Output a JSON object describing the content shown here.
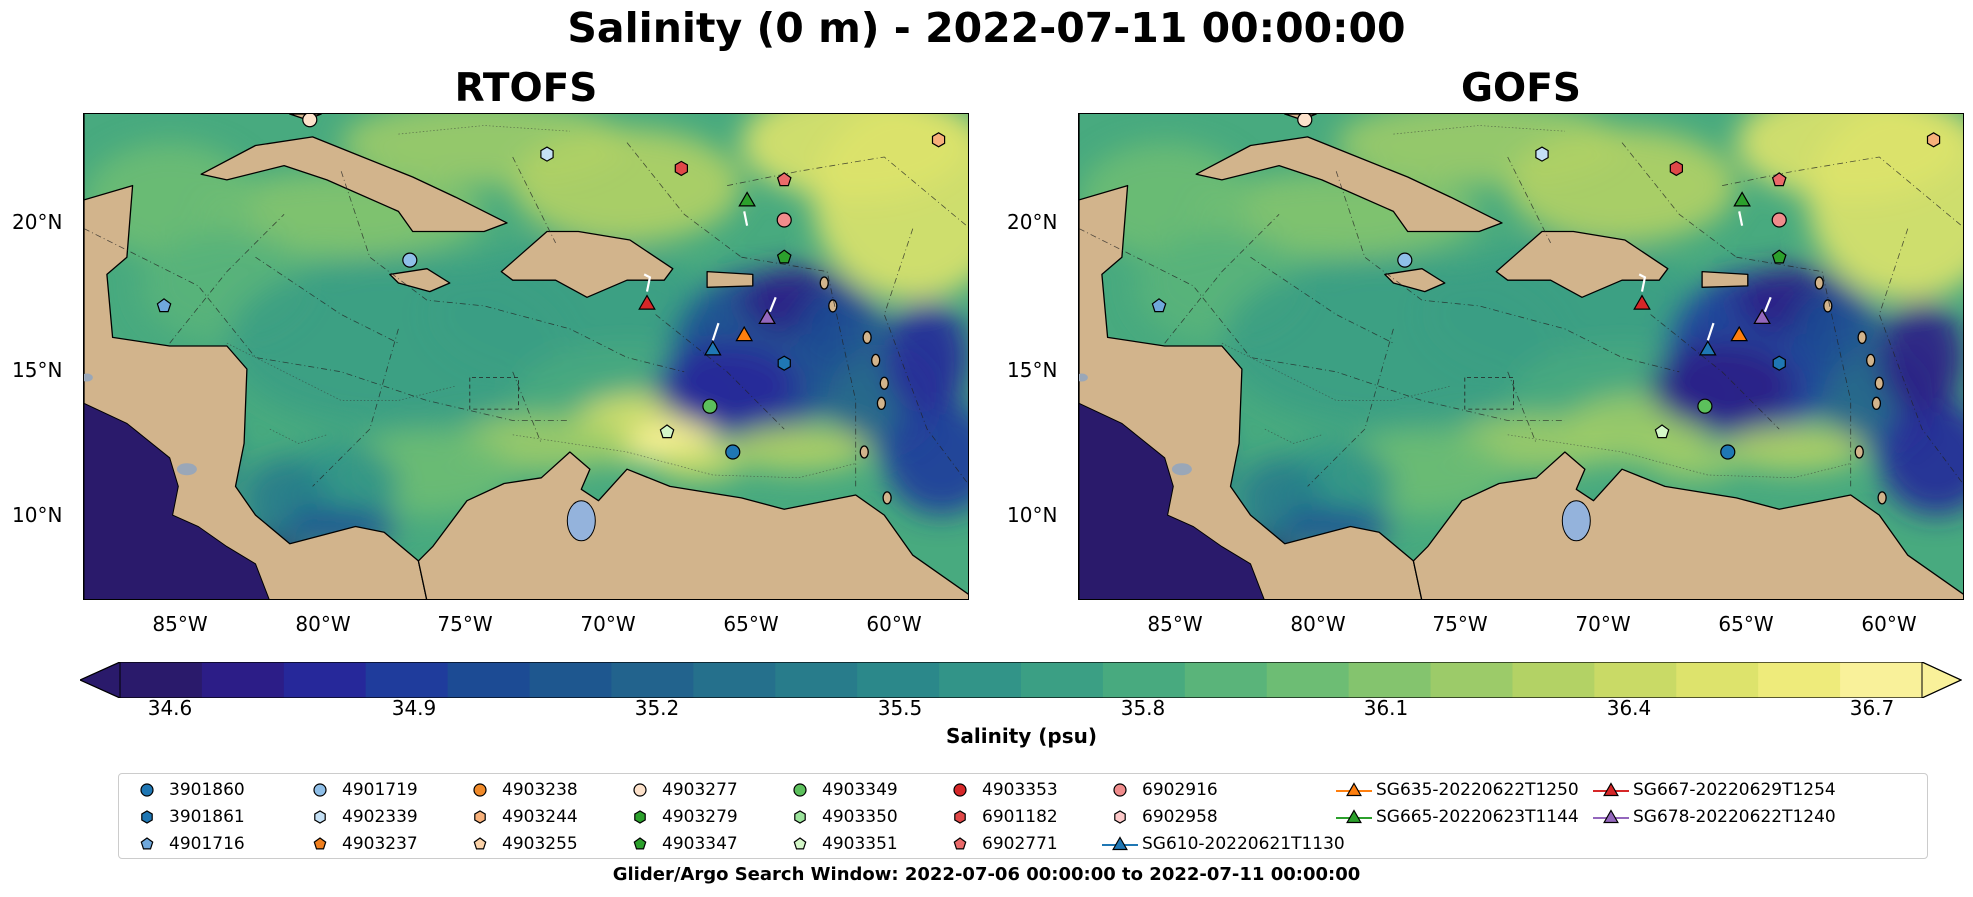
{
  "title": "Salinity (0 m) - 2022-07-11 00:00:00",
  "panels": [
    {
      "title": "RTOFS"
    },
    {
      "title": "GOFS"
    }
  ],
  "y_ticks": [
    "20°N",
    "15°N",
    "10°N"
  ],
  "x_ticks": [
    "85°W",
    "80°W",
    "75°W",
    "70°W",
    "65°W",
    "60°W"
  ],
  "colorbar": {
    "label": "Salinity (psu)",
    "ticks": [
      "34.6",
      "34.9",
      "35.2",
      "35.5",
      "35.8",
      "36.1",
      "36.4",
      "36.7"
    ],
    "min": 34.6,
    "max": 36.7,
    "levels": 22,
    "colormap": "haline",
    "colors": [
      "#2a1a6b",
      "#2c1d87",
      "#26289a",
      "#1f3c9c",
      "#1c4b94",
      "#1e578f",
      "#22638d",
      "#25708c",
      "#287c8b",
      "#2b888a",
      "#329488",
      "#3b9f84",
      "#48aa7f",
      "#5ab47a",
      "#6dbd74",
      "#84c46e",
      "#9ccb69",
      "#b3d265",
      "#c9da66",
      "#dde36c",
      "#eeeb7b",
      "#f9f19a"
    ],
    "land_color": "#d2b48c",
    "lake_color": "#94b3dc"
  },
  "legend": {
    "items": [
      {
        "label": "3901860",
        "marker": "circle",
        "color": "#1f77b4"
      },
      {
        "label": "3901861",
        "marker": "hexagon",
        "color": "#1f77b4"
      },
      {
        "label": "4901716",
        "marker": "pentagon",
        "color": "#6fa8dc"
      },
      {
        "label": "4901719",
        "marker": "circle",
        "color": "#8fbfe8"
      },
      {
        "label": "4902339",
        "marker": "hexagon",
        "color": "#c4e0f5"
      },
      {
        "label": "4903237",
        "marker": "pentagon",
        "color": "#f07f1e"
      },
      {
        "label": "4903238",
        "marker": "circle",
        "color": "#f08a2a"
      },
      {
        "label": "4903244",
        "marker": "hexagon",
        "color": "#f7b07a"
      },
      {
        "label": "4903255",
        "marker": "pentagon",
        "color": "#fcd3a9"
      },
      {
        "label": "4903277",
        "marker": "circle",
        "color": "#fde2cb"
      },
      {
        "label": "4903279",
        "marker": "hexagon",
        "color": "#2ca02c"
      },
      {
        "label": "4903347",
        "marker": "pentagon",
        "color": "#2ca02c"
      },
      {
        "label": "4903349",
        "marker": "circle",
        "color": "#5cc05c"
      },
      {
        "label": "4903350",
        "marker": "hexagon",
        "color": "#9be39b"
      },
      {
        "label": "4903351",
        "marker": "pentagon",
        "color": "#d4f7c8"
      },
      {
        "label": "4903353",
        "marker": "circle",
        "color": "#d62728"
      },
      {
        "label": "6901182",
        "marker": "hexagon",
        "color": "#e04848"
      },
      {
        "label": "6902771",
        "marker": "pentagon",
        "color": "#ea6a6a"
      },
      {
        "label": "6902916",
        "marker": "circle",
        "color": "#f08c8c"
      },
      {
        "label": "6902958",
        "marker": "hexagon",
        "color": "#fcc8c8"
      },
      {
        "label": "SG610-20220621T1130",
        "marker": "triangle-line",
        "color": "#1f77b4"
      },
      {
        "label": "SG635-20220622T1250",
        "marker": "triangle-line",
        "color": "#ff7f0e"
      },
      {
        "label": "SG665-20220623T1144",
        "marker": "triangle-line",
        "color": "#2ca02c"
      },
      {
        "label": "SG667-20220629T1254",
        "marker": "triangle-line",
        "color": "#d62728"
      },
      {
        "label": "SG678-20220622T1240",
        "marker": "triangle-line",
        "color": "#9467bd"
      }
    ]
  },
  "footnote": "Glider/Argo Search Window: 2022-07-06 00:00:00 to 2022-07-11 00:00:00",
  "chart_data": {
    "type": "heatmap",
    "variable": "Salinity",
    "depth": "0 m",
    "datetime": "2022-07-11 00:00:00",
    "lon_range": [
      -89,
      -58
    ],
    "lat_range": [
      7,
      24
    ],
    "models": [
      "RTOFS",
      "GOFS"
    ],
    "argo_floats": [
      {
        "id": "3901860",
        "lon": -66.3,
        "lat": 12.2
      },
      {
        "id": "4901716",
        "lon": -86.2,
        "lat": 17.3
      },
      {
        "id": "4901719",
        "lon": -77.6,
        "lat": 18.9
      },
      {
        "id": "4902339",
        "lon": -72.8,
        "lat": 22.6
      },
      {
        "id": "4903277",
        "lon": -81.1,
        "lat": 23.8
      },
      {
        "id": "4903349",
        "lon": -67.1,
        "lat": 13.8
      },
      {
        "id": "4903351",
        "lon": -68.6,
        "lat": 12.9
      },
      {
        "id": "4903347",
        "lon": -64.5,
        "lat": 19.0
      },
      {
        "id": "6901182",
        "lon": -68.1,
        "lat": 22.1
      },
      {
        "id": "6902771",
        "lon": -64.5,
        "lat": 21.7
      },
      {
        "id": "6902916",
        "lon": -64.5,
        "lat": 20.3
      },
      {
        "id": "4903244",
        "lon": -59.1,
        "lat": 23.1
      },
      {
        "id": "3901861",
        "lon": -64.5,
        "lat": 15.3
      }
    ],
    "gliders": [
      {
        "id": "SG610-20220621T1130",
        "lon": -67.0,
        "lat": 15.8
      },
      {
        "id": "SG635-20220622T1250",
        "lon": -65.9,
        "lat": 16.3
      },
      {
        "id": "SG665-20220623T1144",
        "lon": -65.8,
        "lat": 21.0
      },
      {
        "id": "SG667-20220629T1254",
        "lon": -69.3,
        "lat": 17.4
      },
      {
        "id": "SG678-20220622T1240",
        "lon": -65.1,
        "lat": 16.9
      }
    ]
  }
}
